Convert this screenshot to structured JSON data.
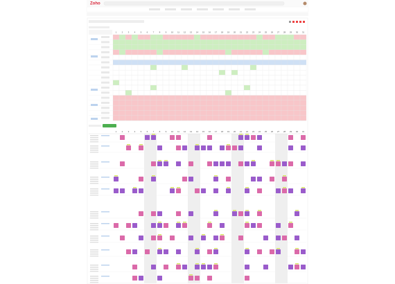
{
  "header": {
    "logo": "Zoho"
  },
  "calendar": {
    "days": [
      1,
      2,
      3,
      4,
      5,
      6,
      7,
      8,
      9,
      10,
      11,
      12,
      13,
      14,
      15,
      16,
      17,
      18,
      19,
      20,
      21,
      22,
      23,
      24,
      25,
      26,
      27,
      28,
      29,
      30,
      31
    ]
  }
}
